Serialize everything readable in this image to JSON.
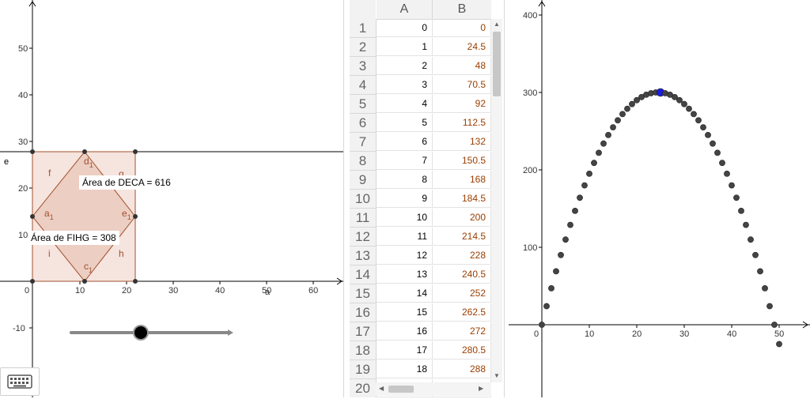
{
  "graphics1": {
    "x_ticks": [
      "0",
      "10",
      "20",
      "30",
      "40",
      "50",
      "60"
    ],
    "y_ticks": [
      "-10",
      "10",
      "20",
      "30",
      "40",
      "50"
    ],
    "x_axis_label": "a",
    "y_axis_label": "e",
    "point_labels": {
      "d1": "d",
      "d1_sub": "1",
      "a1": "a",
      "a1_sub": "1",
      "e1": "e",
      "e1_sub": "1",
      "c1": "c",
      "c1_sub": "1"
    },
    "segment_labels": {
      "f": "f",
      "g": "g",
      "i": "i",
      "h": "h"
    },
    "area_rect": "Área de  DECA = 616",
    "area_diamond": "Área de  FIHG = 308",
    "slider_value": 22,
    "colors": {
      "fill": "#f2d9d2",
      "stroke": "#a0522d",
      "label": "#a0522d"
    }
  },
  "spreadsheet": {
    "col_a": "A",
    "col_b": "B",
    "rows": [
      {
        "n": "1",
        "a": "0",
        "b": "0"
      },
      {
        "n": "2",
        "a": "1",
        "b": "24.5"
      },
      {
        "n": "3",
        "a": "2",
        "b": "48"
      },
      {
        "n": "4",
        "a": "3",
        "b": "70.5"
      },
      {
        "n": "5",
        "a": "4",
        "b": "92"
      },
      {
        "n": "6",
        "a": "5",
        "b": "112.5"
      },
      {
        "n": "7",
        "a": "6",
        "b": "132"
      },
      {
        "n": "8",
        "a": "7",
        "b": "150.5"
      },
      {
        "n": "9",
        "a": "8",
        "b": "168"
      },
      {
        "n": "10",
        "a": "9",
        "b": "184.5"
      },
      {
        "n": "11",
        "a": "10",
        "b": "200"
      },
      {
        "n": "12",
        "a": "11",
        "b": "214.5"
      },
      {
        "n": "13",
        "a": "12",
        "b": "228"
      },
      {
        "n": "14",
        "a": "13",
        "b": "240.5"
      },
      {
        "n": "15",
        "a": "14",
        "b": "252"
      },
      {
        "n": "16",
        "a": "15",
        "b": "262.5"
      },
      {
        "n": "17",
        "a": "16",
        "b": "272"
      },
      {
        "n": "18",
        "a": "17",
        "b": "280.5"
      },
      {
        "n": "19",
        "a": "18",
        "b": "288"
      },
      {
        "n": "20",
        "a": "",
        "b": ""
      }
    ]
  },
  "graphics2": {
    "x_ticks": [
      "0",
      "10",
      "20",
      "30",
      "40",
      "50"
    ],
    "y_ticks": [
      "100",
      "200",
      "300",
      "400"
    ],
    "highlight_x": 25,
    "colors": {
      "point": "#444444",
      "highlight": "#1c1cdc"
    }
  },
  "keyboard": {
    "icon": "keyboard-icon"
  }
}
